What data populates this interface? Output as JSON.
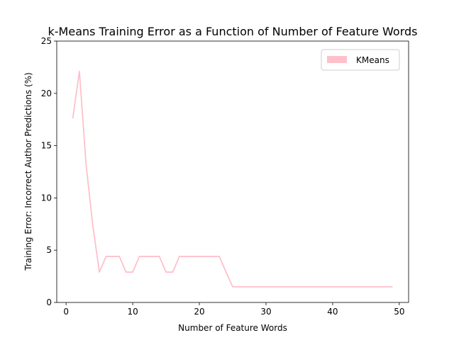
{
  "chart_data": {
    "type": "line",
    "title": "k-Means Training Error as a Function of Number of Feature Words",
    "xlabel": "Number of Feature Words",
    "ylabel": "Training Error: Incorrect Author Predictions (%)",
    "xlim": [
      -1.4,
      51.4
    ],
    "ylim": [
      0,
      25
    ],
    "xticks": [
      0,
      10,
      20,
      30,
      40,
      50
    ],
    "yticks": [
      0,
      5,
      10,
      15,
      20,
      25
    ],
    "grid": false,
    "legend_position": "top-right",
    "series": [
      {
        "name": "KMeans",
        "color": "#ffc0cb",
        "x": [
          1,
          2,
          3,
          4,
          5,
          6,
          7,
          8,
          9,
          10,
          11,
          12,
          13,
          14,
          15,
          16,
          17,
          18,
          19,
          20,
          21,
          22,
          23,
          24,
          25,
          26,
          27,
          28,
          29,
          30,
          31,
          32,
          33,
          34,
          35,
          36,
          37,
          38,
          39,
          40,
          41,
          42,
          43,
          44,
          45,
          46,
          47,
          48,
          49
        ],
        "y": [
          17.6,
          22.1,
          13.2,
          7.4,
          2.9,
          4.4,
          4.4,
          4.4,
          2.9,
          2.9,
          4.4,
          4.4,
          4.4,
          4.4,
          2.9,
          2.9,
          4.4,
          4.4,
          4.4,
          4.4,
          4.4,
          4.4,
          4.4,
          2.9,
          1.5,
          1.5,
          1.5,
          1.5,
          1.5,
          1.5,
          1.5,
          1.5,
          1.5,
          1.5,
          1.5,
          1.5,
          1.5,
          1.5,
          1.5,
          1.5,
          1.5,
          1.5,
          1.5,
          1.5,
          1.5,
          1.5,
          1.5,
          1.5,
          1.5
        ]
      }
    ]
  }
}
